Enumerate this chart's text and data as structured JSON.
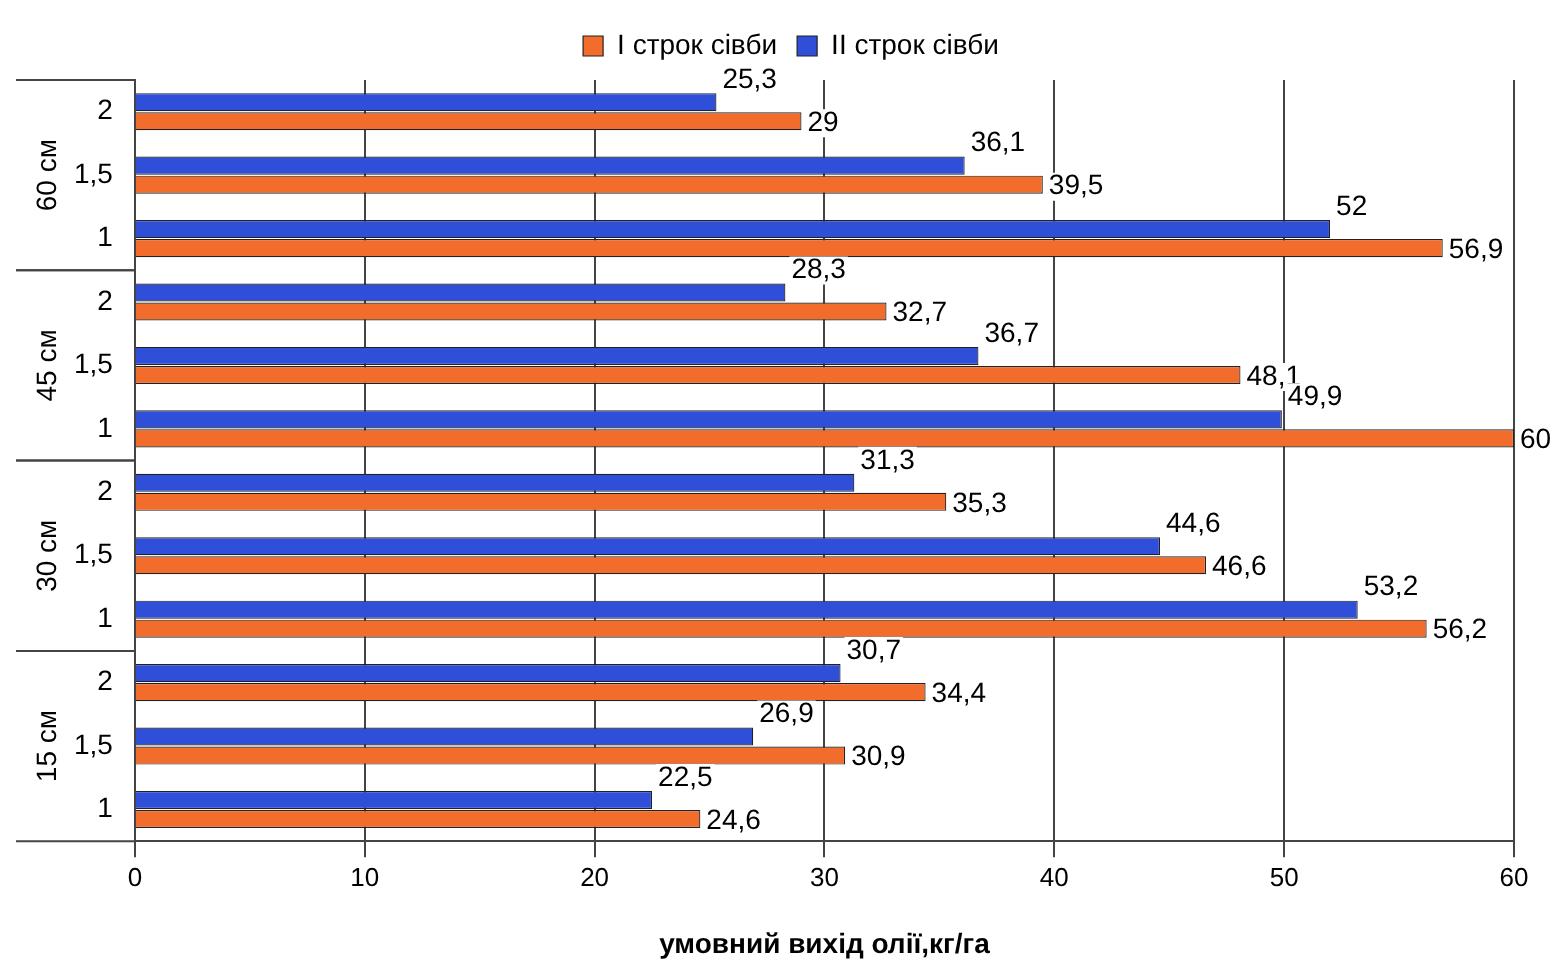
{
  "chart_data": {
    "type": "bar",
    "orientation": "horizontal",
    "xlabel": "умовний вихід олії,кг/га",
    "categories": [
      "2",
      "1,5",
      "1",
      "2",
      "1,5",
      "1",
      "2",
      "1,5",
      "1",
      "2",
      "1,5",
      "1"
    ],
    "annotations": [
      "60 см",
      "45 см",
      "30 см",
      "15 см"
    ],
    "series": [
      {
        "name": "I строк сівби",
        "color": "#f26d2c",
        "values": [
          29,
          39.5,
          56.9,
          32.7,
          48.1,
          60,
          35.3,
          46.6,
          56.2,
          34.4,
          30.9,
          24.6
        ],
        "value_labels": [
          "29",
          "39,5",
          "56,9",
          "32,7",
          "48,1",
          "60",
          "35,3",
          "46,6",
          "56,2",
          "34,4",
          "30,9",
          "24,6"
        ]
      },
      {
        "name": "II строк сівби",
        "color": "#2f4fd8",
        "values": [
          25.3,
          36.1,
          52,
          28.3,
          36.7,
          49.9,
          31.3,
          44.6,
          53.2,
          30.7,
          26.9,
          22.5
        ],
        "value_labels": [
          "25,3",
          "36,1",
          "52",
          "28,3",
          "36,7",
          "49,9",
          "31,3",
          "44,6",
          "53,2",
          "30,7",
          "26,9",
          "22,5"
        ]
      }
    ],
    "xlim": [
      0,
      60
    ],
    "xticks": [
      0,
      10,
      20,
      30,
      40,
      50,
      60
    ],
    "grid": "x",
    "legend": "top"
  }
}
